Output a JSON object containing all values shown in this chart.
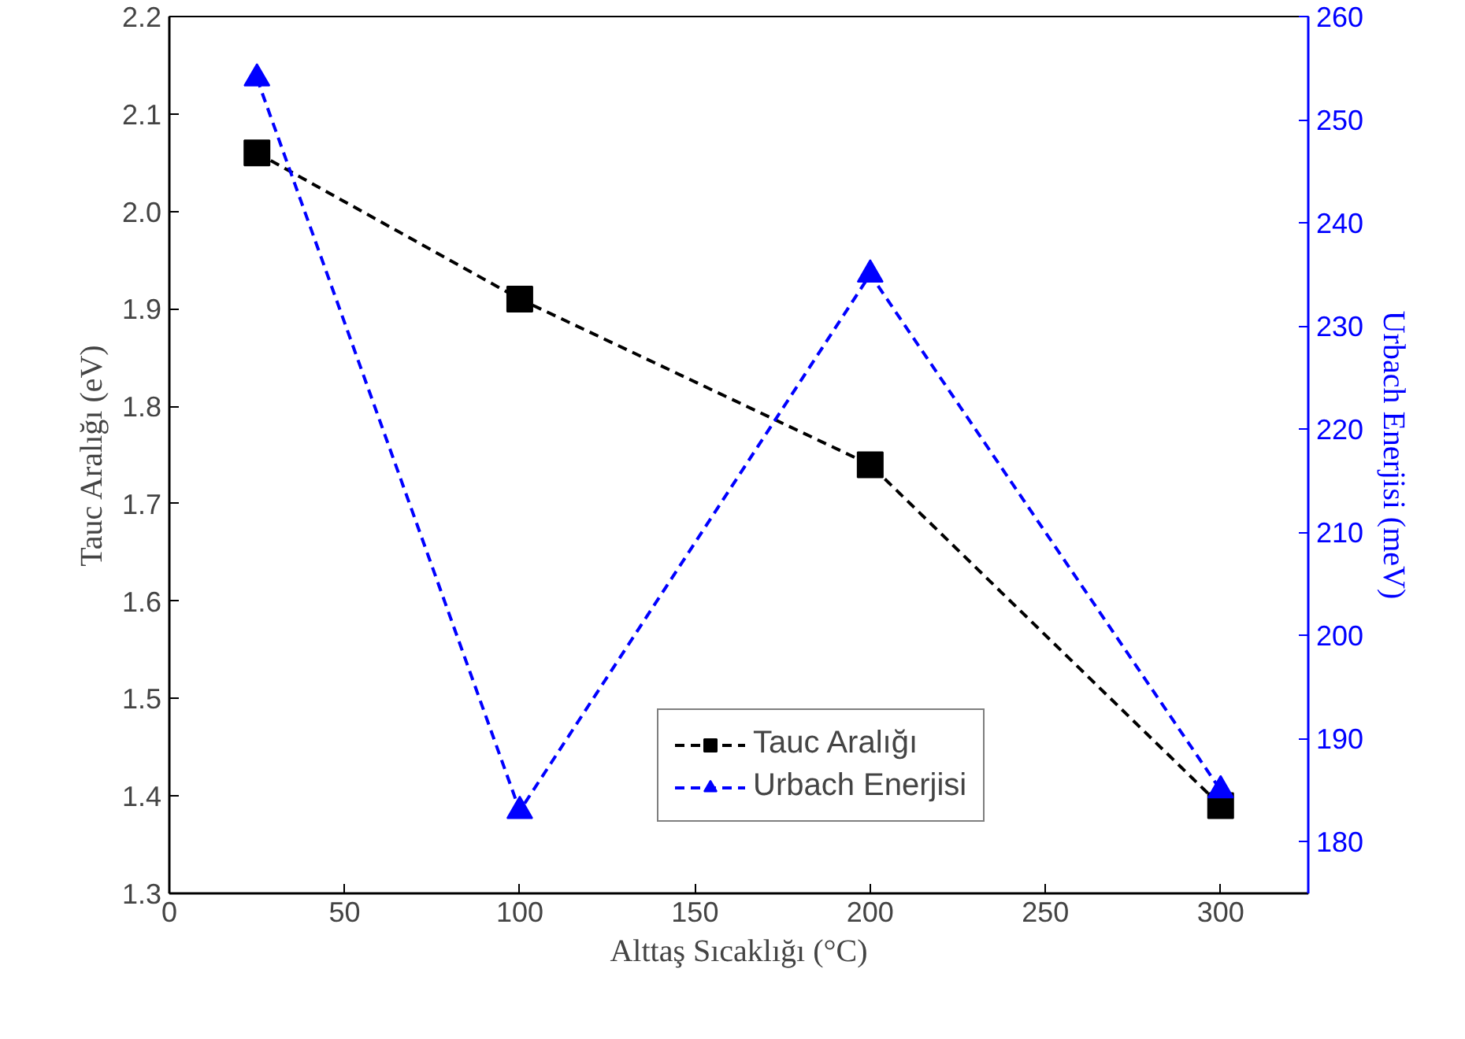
{
  "chart_data": {
    "type": "line",
    "xlabel": "Alttaş Sıcaklığı (°C)",
    "ylabel": "Tauc Aralığı (eV)",
    "y2label": "Urbach Enerjisi (meV)",
    "x": [
      25,
      100,
      200,
      300
    ],
    "series": [
      {
        "name": "Tauc Aralığı",
        "color": "#000000",
        "values": [
          2.06,
          1.91,
          1.74,
          1.39
        ],
        "marker": "square"
      },
      {
        "name": "Urbach Enerjisi",
        "color": "#0000ff",
        "values": [
          254,
          183,
          235,
          185
        ],
        "marker": "triangle",
        "axis": "y2"
      }
    ],
    "xlim": [
      0,
      325
    ],
    "xticks": [
      0,
      50,
      100,
      150,
      200,
      250,
      300
    ],
    "ylim": [
      1.3,
      2.2
    ],
    "yticks": [
      {
        "value": 1.3,
        "label": "1.3"
      },
      {
        "value": 1.4,
        "label": "1.4"
      },
      {
        "value": 1.5,
        "label": "1.5"
      },
      {
        "value": 1.6,
        "label": "1.6"
      },
      {
        "value": 1.7,
        "label": "1.7"
      },
      {
        "value": 1.8,
        "label": "1.8"
      },
      {
        "value": 1.9,
        "label": "1.9"
      },
      {
        "value": 2.0,
        "label": "2.0"
      },
      {
        "value": 2.1,
        "label": "2.1"
      },
      {
        "value": 2.2,
        "label": "2.2"
      }
    ],
    "y2lim": [
      175,
      260
    ],
    "y2ticks": [
      180,
      190,
      200,
      210,
      220,
      230,
      240,
      250,
      260
    ],
    "line_style": "dashed",
    "grid": false,
    "legend": "bottom right"
  }
}
